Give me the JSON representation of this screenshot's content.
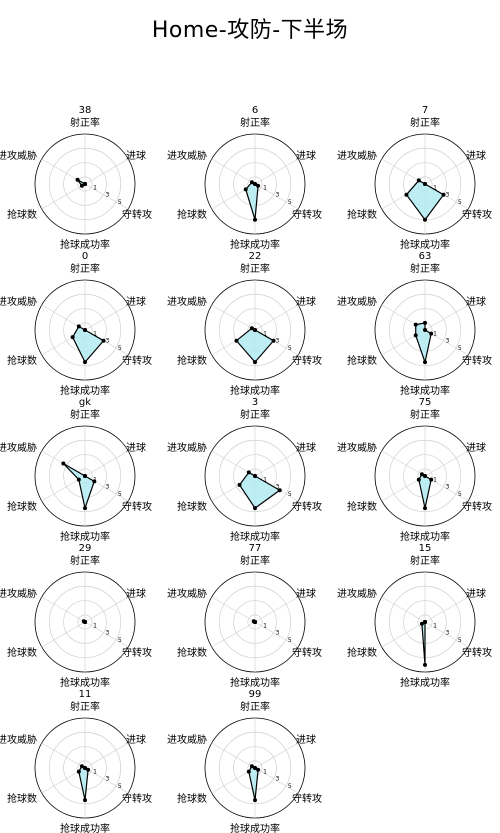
{
  "title": "Home-攻防-下半场",
  "chart_data": {
    "type": "radar",
    "title": "Home-攻防-下半场",
    "axes": [
      "射正率",
      "进球",
      "守转攻",
      "抢球成功率",
      "抢球数",
      "进攻威胁"
    ],
    "ticks": [
      "1",
      "3",
      "5"
    ],
    "rmax": 7,
    "grid": true,
    "fill_color": "#b2ebf2",
    "line_color": "#000000",
    "players": [
      {
        "name": "38",
        "values": [
          0,
          0,
          0,
          0,
          0.5,
          1.2
        ]
      },
      {
        "name": "6",
        "values": [
          0,
          0,
          0.5,
          5,
          1.5,
          0.5
        ]
      },
      {
        "name": "7",
        "values": [
          0,
          0,
          3,
          5,
          3,
          1
        ]
      },
      {
        "name": "0",
        "values": [
          0,
          0,
          3,
          4.5,
          2,
          1
        ]
      },
      {
        "name": "22",
        "values": [
          0,
          0,
          3,
          4.5,
          3,
          0.5
        ]
      },
      {
        "name": "63",
        "values": [
          1,
          0,
          1,
          4.5,
          1.5,
          1.5
        ]
      },
      {
        "name": "gk",
        "values": [
          0,
          0,
          1.5,
          4.5,
          1,
          3.5
        ]
      },
      {
        "name": "3",
        "values": [
          0,
          0,
          4,
          4.5,
          2.5,
          1
        ]
      },
      {
        "name": "75",
        "values": [
          0,
          0,
          1,
          4.5,
          1,
          0.5
        ]
      },
      {
        "name": "29",
        "values": [
          0,
          0,
          0,
          0,
          0,
          0.2
        ]
      },
      {
        "name": "77",
        "values": [
          0,
          0,
          0,
          0,
          0,
          0.2
        ]
      },
      {
        "name": "15",
        "values": [
          0,
          0,
          0,
          6,
          0.5,
          0
        ]
      },
      {
        "name": "11",
        "values": [
          0,
          0,
          0.5,
          4.5,
          1,
          0.5
        ]
      },
      {
        "name": "99",
        "values": [
          0,
          0,
          0.5,
          4.5,
          1,
          0.5
        ]
      }
    ]
  }
}
